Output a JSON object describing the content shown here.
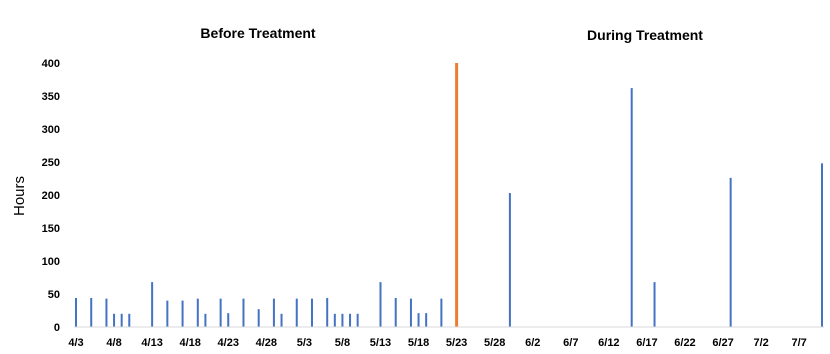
{
  "chart_data": {
    "type": "bar",
    "title": "",
    "xlabel": "",
    "ylabel": "Hours",
    "ylim": [
      0,
      400
    ],
    "yticks": [
      0,
      50,
      100,
      150,
      200,
      250,
      300,
      350,
      400
    ],
    "xlim": [
      "4/3",
      "7/10"
    ],
    "xtick_labels": [
      "4/3",
      "4/8",
      "4/13",
      "4/18",
      "4/23",
      "4/28",
      "5/3",
      "5/8",
      "5/13",
      "5/18",
      "5/23",
      "5/28",
      "6/2",
      "6/7",
      "6/12",
      "6/17",
      "6/22",
      "6/27",
      "7/2",
      "7/7"
    ],
    "grid": false,
    "legend": "none",
    "annotations": [
      {
        "text": "Before Treatment",
        "x": "4/28"
      },
      {
        "text": "During Treatment",
        "x": "6/20"
      }
    ],
    "divider": {
      "x": "5/23",
      "color": "#ED7D31"
    },
    "series": [
      {
        "color": "#4472C4",
        "points": [
          {
            "x": "4/3",
            "y": 44
          },
          {
            "x": "4/5",
            "y": 44
          },
          {
            "x": "4/7",
            "y": 43
          },
          {
            "x": "4/8",
            "y": 20
          },
          {
            "x": "4/9",
            "y": 20
          },
          {
            "x": "4/10",
            "y": 20
          },
          {
            "x": "4/13",
            "y": 68
          },
          {
            "x": "4/15",
            "y": 40
          },
          {
            "x": "4/17",
            "y": 40
          },
          {
            "x": "4/19",
            "y": 43
          },
          {
            "x": "4/20",
            "y": 20
          },
          {
            "x": "4/22",
            "y": 43
          },
          {
            "x": "4/23",
            "y": 21
          },
          {
            "x": "4/25",
            "y": 43
          },
          {
            "x": "4/27",
            "y": 27
          },
          {
            "x": "4/29",
            "y": 43
          },
          {
            "x": "4/30",
            "y": 20
          },
          {
            "x": "5/2",
            "y": 43
          },
          {
            "x": "5/4",
            "y": 43
          },
          {
            "x": "5/6",
            "y": 44
          },
          {
            "x": "5/7",
            "y": 20
          },
          {
            "x": "5/8",
            "y": 20
          },
          {
            "x": "5/9",
            "y": 20
          },
          {
            "x": "5/10",
            "y": 20
          },
          {
            "x": "5/13",
            "y": 68
          },
          {
            "x": "5/15",
            "y": 44
          },
          {
            "x": "5/17",
            "y": 43
          },
          {
            "x": "5/18",
            "y": 21
          },
          {
            "x": "5/19",
            "y": 21
          },
          {
            "x": "5/21",
            "y": 43
          },
          {
            "x": "5/30",
            "y": 203
          },
          {
            "x": "6/15",
            "y": 362
          },
          {
            "x": "6/18",
            "y": 68
          },
          {
            "x": "6/28",
            "y": 226
          },
          {
            "x": "7/10",
            "y": 248
          }
        ]
      }
    ]
  }
}
